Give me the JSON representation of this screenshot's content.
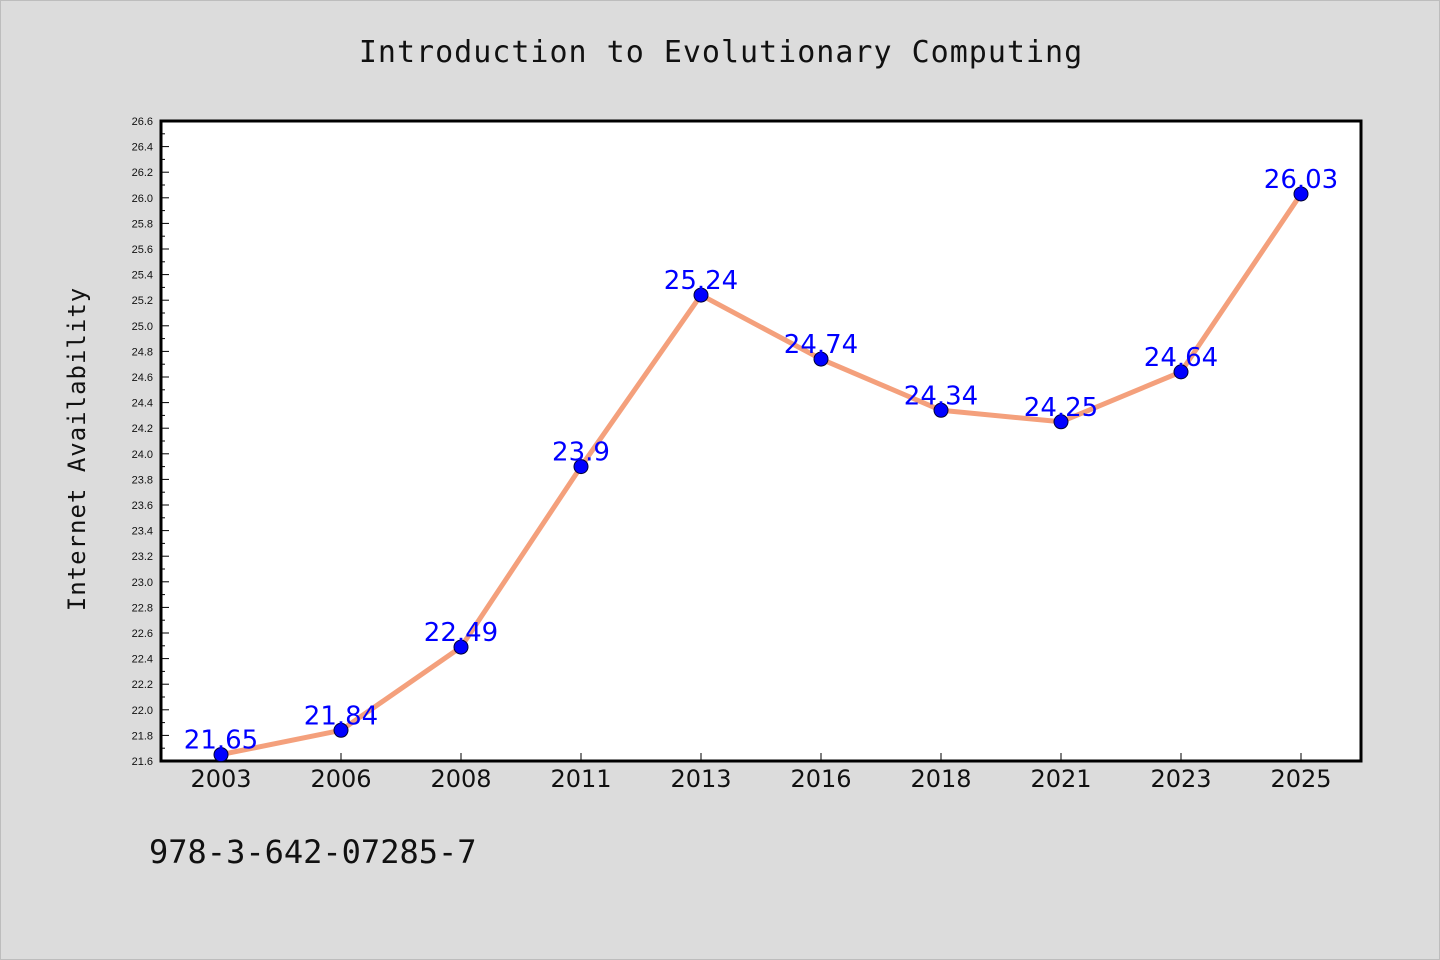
{
  "chart_data": {
    "type": "line",
    "title": "Introduction to Evolutionary Computing",
    "ylabel": "Internet Availability",
    "xlabel": "",
    "categories": [
      "2003",
      "2006",
      "2008",
      "2011",
      "2013",
      "2016",
      "2018",
      "2021",
      "2023",
      "2025"
    ],
    "values": [
      21.65,
      21.84,
      22.49,
      23.9,
      25.24,
      24.74,
      24.34,
      24.25,
      24.64,
      26.03
    ],
    "data_labels": [
      "21.65",
      "21.84",
      "22.49",
      "23.9",
      "25.24",
      "24.74",
      "24.34",
      "24.25",
      "24.64",
      "26.03"
    ],
    "ylim": [
      21.6,
      26.6
    ],
    "yticks": [
      "21.6",
      "21.8",
      "22.0",
      "22.2",
      "22.4",
      "22.6",
      "22.8",
      "23.0",
      "23.2",
      "23.4",
      "23.6",
      "23.8",
      "24.0",
      "24.2",
      "24.4",
      "24.6",
      "24.8",
      "25.0",
      "25.2",
      "25.4",
      "25.6",
      "25.8",
      "26.0",
      "26.2",
      "26.4",
      "26.6"
    ],
    "grid": false,
    "legend": "none",
    "line_color": "#f4a07c",
    "marker_color": "#0000ff",
    "label_color": "#0000ff"
  },
  "footnote": "978-3-642-07285-7"
}
